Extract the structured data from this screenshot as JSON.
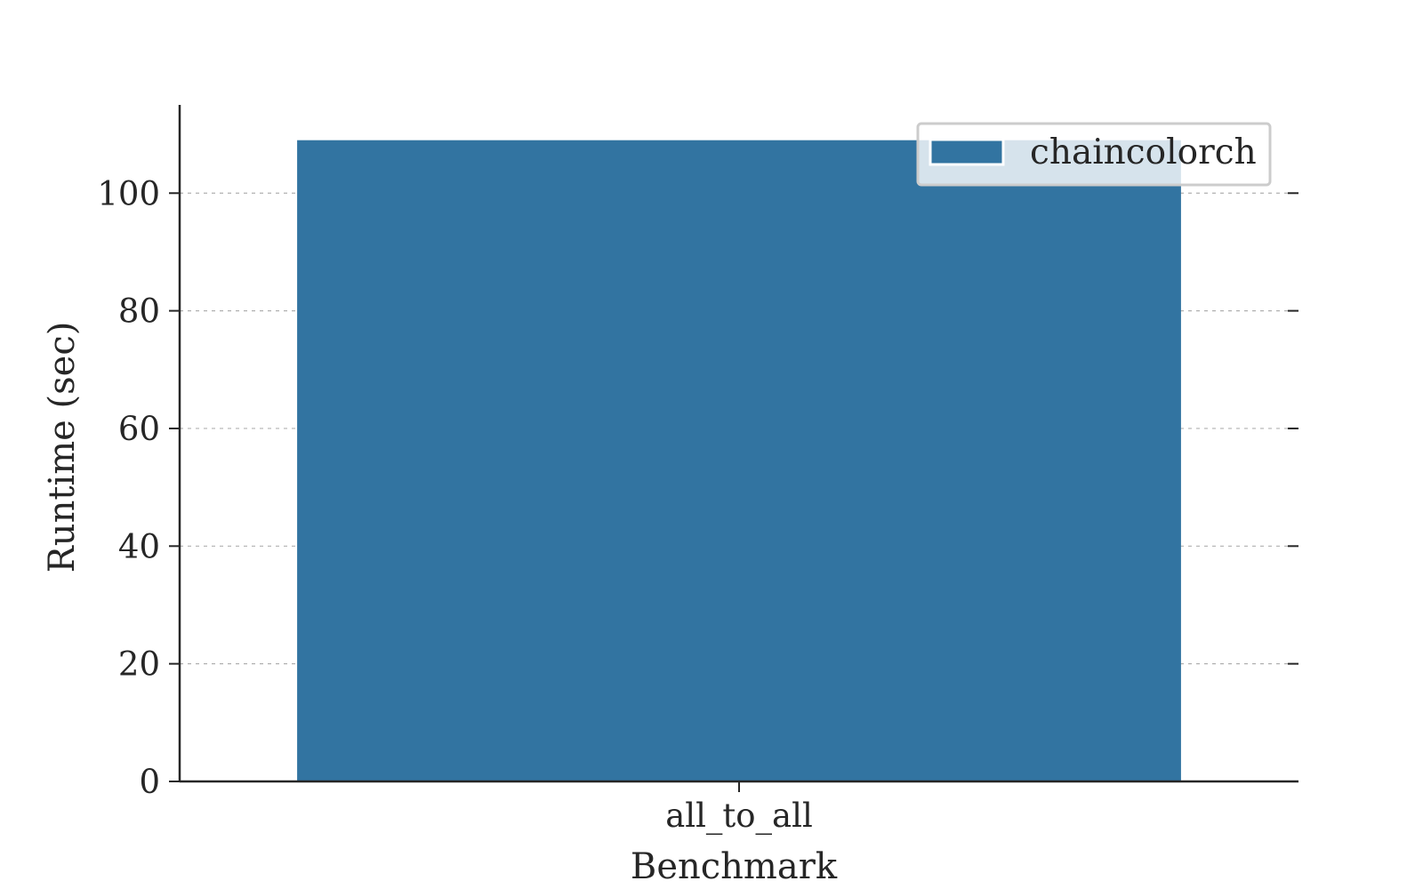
{
  "chart_data": {
    "type": "bar",
    "categories": [
      "all_to_all"
    ],
    "series": [
      {
        "name": "chaincolorch",
        "values": [
          109
        ]
      }
    ],
    "xlabel": "Benchmark",
    "ylabel": "Runtime (sec)",
    "ylim": [
      0,
      115
    ],
    "yticks": [
      0,
      20,
      40,
      60,
      80,
      100
    ],
    "grid": "horizontal dashed",
    "legend_position": "top-right",
    "colors": {
      "bar": "#3274a1",
      "axis": "#262626",
      "grid": "#b0b0b0",
      "legend_border": "#cccccc"
    }
  }
}
